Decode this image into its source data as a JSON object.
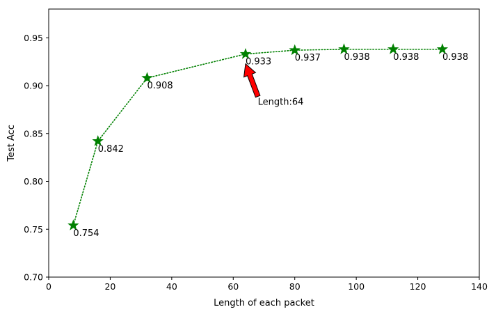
{
  "chart_data": {
    "type": "line",
    "title": "",
    "xlabel": "Length of each packet",
    "ylabel": "Test Acc",
    "xlim": [
      0,
      140
    ],
    "ylim": [
      0.7,
      0.98
    ],
    "x_ticks": [
      0,
      20,
      40,
      60,
      80,
      100,
      120,
      140
    ],
    "x_tick_labels": [
      "0",
      "20",
      "40",
      "60",
      "80",
      "100",
      "120",
      "140"
    ],
    "y_ticks": [
      0.7,
      0.75,
      0.8,
      0.85,
      0.9,
      0.95
    ],
    "y_tick_labels": [
      "0.70",
      "0.75",
      "0.80",
      "0.85",
      "0.90",
      "0.95"
    ],
    "grid": false,
    "series": [
      {
        "x": [
          8,
          16,
          32,
          64,
          80,
          96,
          112,
          128
        ],
        "y": [
          0.754,
          0.842,
          0.908,
          0.933,
          0.937,
          0.938,
          0.938,
          0.938
        ],
        "labels": [
          "0.754",
          "0.842",
          "0.908",
          "0.933",
          "0.937",
          "0.938",
          "0.938",
          "0.938"
        ],
        "color": "#008000",
        "line_style": "dotted",
        "marker": "star"
      }
    ],
    "annotations": [
      {
        "text": "Length:64",
        "target_x": 64,
        "target_y": 0.933,
        "text_x": 68,
        "text_y": 0.88,
        "arrow_color": "#ff0000"
      }
    ]
  }
}
